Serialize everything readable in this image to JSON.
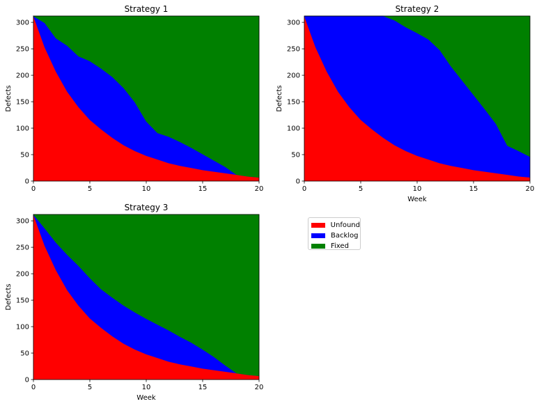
{
  "colors": {
    "unfound": "#ff0000",
    "backlog": "#0000ff",
    "fixed": "#008000"
  },
  "legend": {
    "placement": "right of Strategy 3 (empty fourth panel)",
    "items": [
      {
        "label": "Unfound",
        "color": "#ff0000"
      },
      {
        "label": "Backlog",
        "color": "#0000ff"
      },
      {
        "label": "Fixed",
        "color": "#008000"
      }
    ]
  },
  "chart_data": [
    {
      "type": "area",
      "stacked": true,
      "title": "Strategy 1",
      "xlabel": "",
      "ylabel": "Defects",
      "xlim": [
        0,
        20
      ],
      "ylim": [
        0,
        312
      ],
      "xticks": [
        0,
        5,
        10,
        15,
        20
      ],
      "yticks": [
        0,
        50,
        100,
        150,
        200,
        250,
        300
      ],
      "grid": false,
      "x": [
        0,
        1,
        2,
        3,
        4,
        5,
        6,
        7,
        8,
        9,
        10,
        11,
        12,
        13,
        14,
        15,
        16,
        17,
        18,
        19,
        20
      ],
      "series": [
        {
          "name": "Unfound",
          "color": "#ff0000",
          "values": [
            312,
            253,
            207,
            169,
            140,
            116,
            98,
            82,
            68,
            57,
            48,
            41,
            34,
            29,
            25,
            21,
            18,
            15,
            12,
            9,
            7
          ]
        },
        {
          "name": "Backlog",
          "color": "#0000ff",
          "values": [
            0,
            46,
            63,
            87,
            96,
            111,
            115,
            115,
            108,
            92,
            65,
            50,
            50,
            45,
            38,
            30,
            21,
            12,
            0,
            0,
            0
          ]
        },
        {
          "name": "Fixed",
          "color": "#008000",
          "values": [
            0,
            13,
            42,
            56,
            76,
            85,
            99,
            115,
            136,
            163,
            199,
            221,
            228,
            238,
            249,
            261,
            273,
            285,
            300,
            303,
            305
          ]
        }
      ]
    },
    {
      "type": "area",
      "stacked": true,
      "title": "Strategy 2",
      "xlabel": "Week",
      "ylabel": "Defects",
      "xlim": [
        0,
        20
      ],
      "ylim": [
        0,
        312
      ],
      "xticks": [
        0,
        5,
        10,
        15,
        20
      ],
      "yticks": [
        0,
        50,
        100,
        150,
        200,
        250,
        300
      ],
      "grid": false,
      "x": [
        0,
        1,
        2,
        3,
        4,
        5,
        6,
        7,
        8,
        9,
        10,
        11,
        12,
        13,
        14,
        15,
        16,
        17,
        18,
        19,
        20
      ],
      "series": [
        {
          "name": "Unfound",
          "color": "#ff0000",
          "values": [
            312,
            253,
            207,
            169,
            140,
            116,
            98,
            82,
            68,
            57,
            48,
            41,
            34,
            29,
            25,
            21,
            18,
            15,
            12,
            9,
            7
          ]
        },
        {
          "name": "Backlog",
          "color": "#0000ff",
          "values": [
            0,
            59,
            105,
            143,
            172,
            196,
            214,
            230,
            236,
            234,
            232,
            227,
            214,
            188,
            165,
            142,
            118,
            93,
            55,
            48,
            39
          ]
        },
        {
          "name": "Fixed",
          "color": "#008000",
          "values": [
            0,
            0,
            0,
            0,
            0,
            0,
            0,
            0,
            8,
            21,
            32,
            44,
            64,
            95,
            122,
            149,
            176,
            204,
            245,
            255,
            266
          ]
        }
      ]
    },
    {
      "type": "area",
      "stacked": true,
      "title": "Strategy 3",
      "xlabel": "Week",
      "ylabel": "Defects",
      "xlim": [
        0,
        20
      ],
      "ylim": [
        0,
        312
      ],
      "xticks": [
        0,
        5,
        10,
        15,
        20
      ],
      "yticks": [
        0,
        50,
        100,
        150,
        200,
        250,
        300
      ],
      "grid": false,
      "x": [
        0,
        1,
        2,
        3,
        4,
        5,
        6,
        7,
        8,
        9,
        10,
        11,
        12,
        13,
        14,
        15,
        16,
        17,
        18,
        19,
        20
      ],
      "series": [
        {
          "name": "Unfound",
          "color": "#ff0000",
          "values": [
            312,
            253,
            207,
            169,
            140,
            116,
            98,
            82,
            68,
            57,
            48,
            41,
            34,
            29,
            25,
            21,
            18,
            15,
            12,
            9,
            7
          ]
        },
        {
          "name": "Backlog",
          "color": "#0000ff",
          "values": [
            0,
            33,
            52,
            67,
            75,
            76,
            73,
            73,
            72,
            70,
            67,
            63,
            59,
            52,
            45,
            36,
            25,
            12,
            0,
            0,
            0
          ]
        },
        {
          "name": "Fixed",
          "color": "#008000",
          "values": [
            0,
            26,
            53,
            76,
            97,
            120,
            141,
            157,
            172,
            185,
            197,
            208,
            219,
            231,
            242,
            255,
            269,
            285,
            300,
            303,
            305
          ]
        }
      ]
    }
  ]
}
